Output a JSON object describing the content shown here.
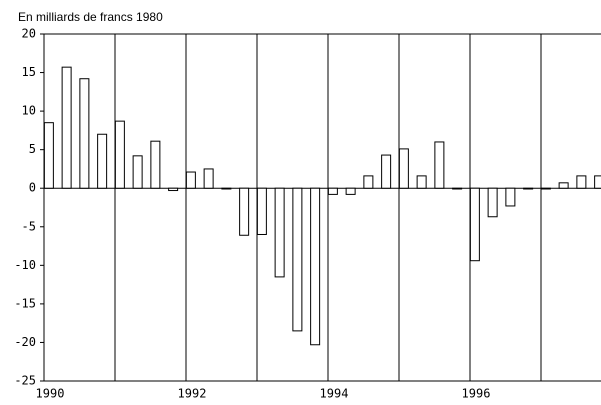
{
  "chart_data": {
    "type": "bar",
    "title": "En milliards de francs 1980",
    "categories": [
      "1990",
      null,
      null,
      null,
      null,
      null,
      null,
      null,
      "1992",
      null,
      null,
      null,
      null,
      null,
      null,
      null,
      "1994",
      null,
      null,
      null,
      null,
      null,
      null,
      null,
      "1996",
      null,
      null,
      null,
      null,
      null,
      null,
      null
    ],
    "values": [
      8.5,
      15.7,
      14.2,
      7.0,
      8.7,
      4.2,
      6.1,
      -0.3,
      2.1,
      2.5,
      -0.1,
      -6.1,
      -6.0,
      -11.5,
      -18.5,
      -20.3,
      -0.8,
      -0.8,
      1.6,
      4.3,
      5.1,
      1.6,
      6.0,
      -0.1,
      -9.4,
      -3.7,
      -2.3,
      -0.1,
      -0.1,
      0.7,
      1.6,
      1.6
    ],
    "color": "#ffffff",
    "ylim": [
      -25,
      20
    ],
    "yticks": [
      -25,
      -20,
      -15,
      -10,
      -5,
      0,
      5,
      10,
      15,
      20
    ]
  }
}
